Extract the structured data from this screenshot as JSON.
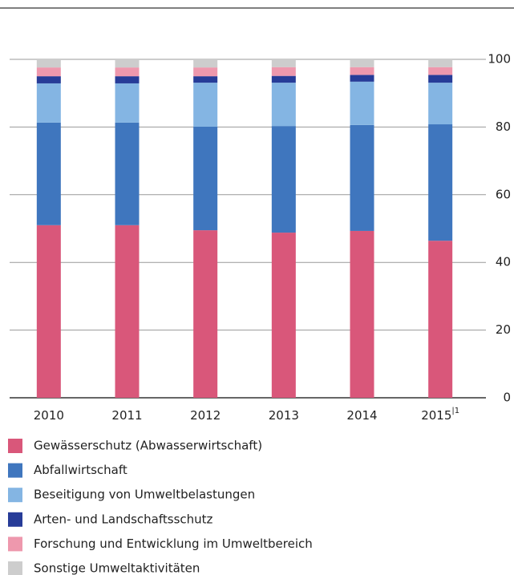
{
  "chart_data": {
    "type": "stacked_bar",
    "categories": [
      "2010",
      "2011",
      "2012",
      "2013",
      "2014",
      "2015"
    ],
    "category_notes": [
      null,
      null,
      null,
      null,
      null,
      "|1"
    ],
    "series": [
      {
        "name": "Gewässerschutz (Abwasserwirtschaft)",
        "color": "#d9577a",
        "values": [
          51,
          51,
          49.5,
          48.8,
          49.3,
          46.4
        ]
      },
      {
        "name": "Abfallwirtschaft",
        "color": "#3f76be",
        "values": [
          30.3,
          30.3,
          30.6,
          31.5,
          31.3,
          34.4
        ]
      },
      {
        "name": "Beseitigung von Umweltbelastungen",
        "color": "#84b5e3",
        "values": [
          11.6,
          11.6,
          13,
          12.8,
          12.8,
          12.3
        ]
      },
      {
        "name": "Arten- und Landschaftsschutz",
        "color": "#273c98",
        "values": [
          2.1,
          2.1,
          1.9,
          2,
          2,
          2.3
        ]
      },
      {
        "name": "Forschung und Entwicklung im Umweltbereich",
        "color": "#ee98ad",
        "values": [
          2.6,
          2.6,
          2.6,
          2.6,
          2.3,
          2.3
        ]
      },
      {
        "name": "Sonstige Umweltaktivitäten",
        "color": "#cdcdcd",
        "values": [
          2.4,
          2.4,
          2.4,
          2.3,
          2.3,
          2.3
        ]
      }
    ],
    "ylim": [
      0,
      100
    ],
    "yticks": [
      0,
      20,
      40,
      60,
      80,
      100
    ],
    "grid": true
  }
}
